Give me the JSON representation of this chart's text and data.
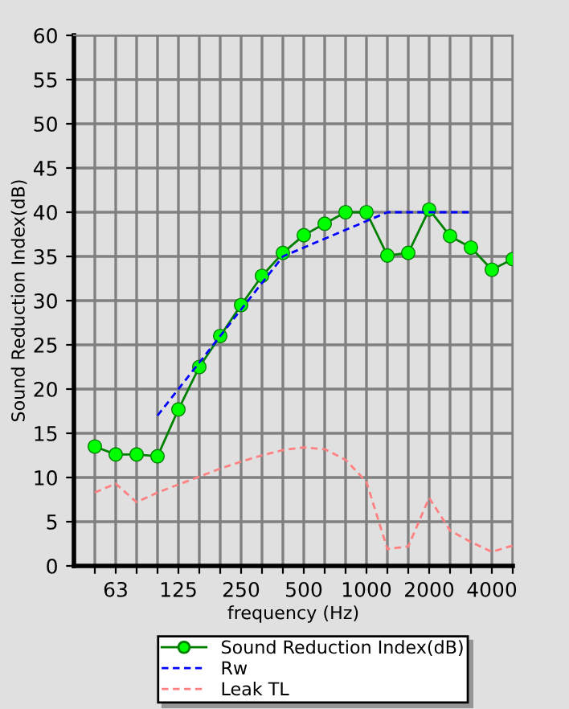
{
  "chart_data": {
    "type": "line",
    "xlabel": "frequency (Hz)",
    "ylabel": "Sound Reduction Index(dB)",
    "categories": [
      null,
      "63",
      null,
      null,
      "125",
      null,
      null,
      "250",
      null,
      null,
      "500",
      null,
      null,
      "1000",
      null,
      null,
      "2000",
      null,
      null,
      "4000",
      null
    ],
    "ylim": [
      0,
      60
    ],
    "yticks": [
      0,
      5,
      10,
      15,
      20,
      25,
      30,
      35,
      40,
      45,
      50,
      55,
      60
    ],
    "grid": true,
    "legend": "bottom",
    "series": [
      {
        "name": "Sound Reduction Index(dB)",
        "color": "#008000",
        "marker": "circle",
        "line_style": "solid",
        "values": [
          13.5,
          12.6,
          12.6,
          12.4,
          17.7,
          22.5,
          26,
          29.5,
          32.8,
          35.4,
          37.4,
          38.7,
          40,
          40,
          35.1,
          35.4,
          40.3,
          37.3,
          36,
          33.5,
          34.7
        ]
      },
      {
        "name": "Rw",
        "color": "#0000ff",
        "marker": "none",
        "line_style": "dashed",
        "values": [
          null,
          null,
          null,
          17,
          20,
          23,
          26,
          29,
          32,
          35,
          36,
          37,
          38,
          39,
          40,
          40,
          40,
          40,
          40,
          null,
          null
        ]
      },
      {
        "name": "Leak TL",
        "color": "#ff8080",
        "marker": "none",
        "line_style": "dashed",
        "values": [
          8.3,
          9.3,
          7.2,
          8.3,
          9.2,
          10.1,
          11,
          11.8,
          12.5,
          13.1,
          13.4,
          13.2,
          12,
          9.5,
          1.9,
          2.2,
          7.7,
          4,
          2.7,
          1.6,
          2.3
        ]
      }
    ]
  }
}
